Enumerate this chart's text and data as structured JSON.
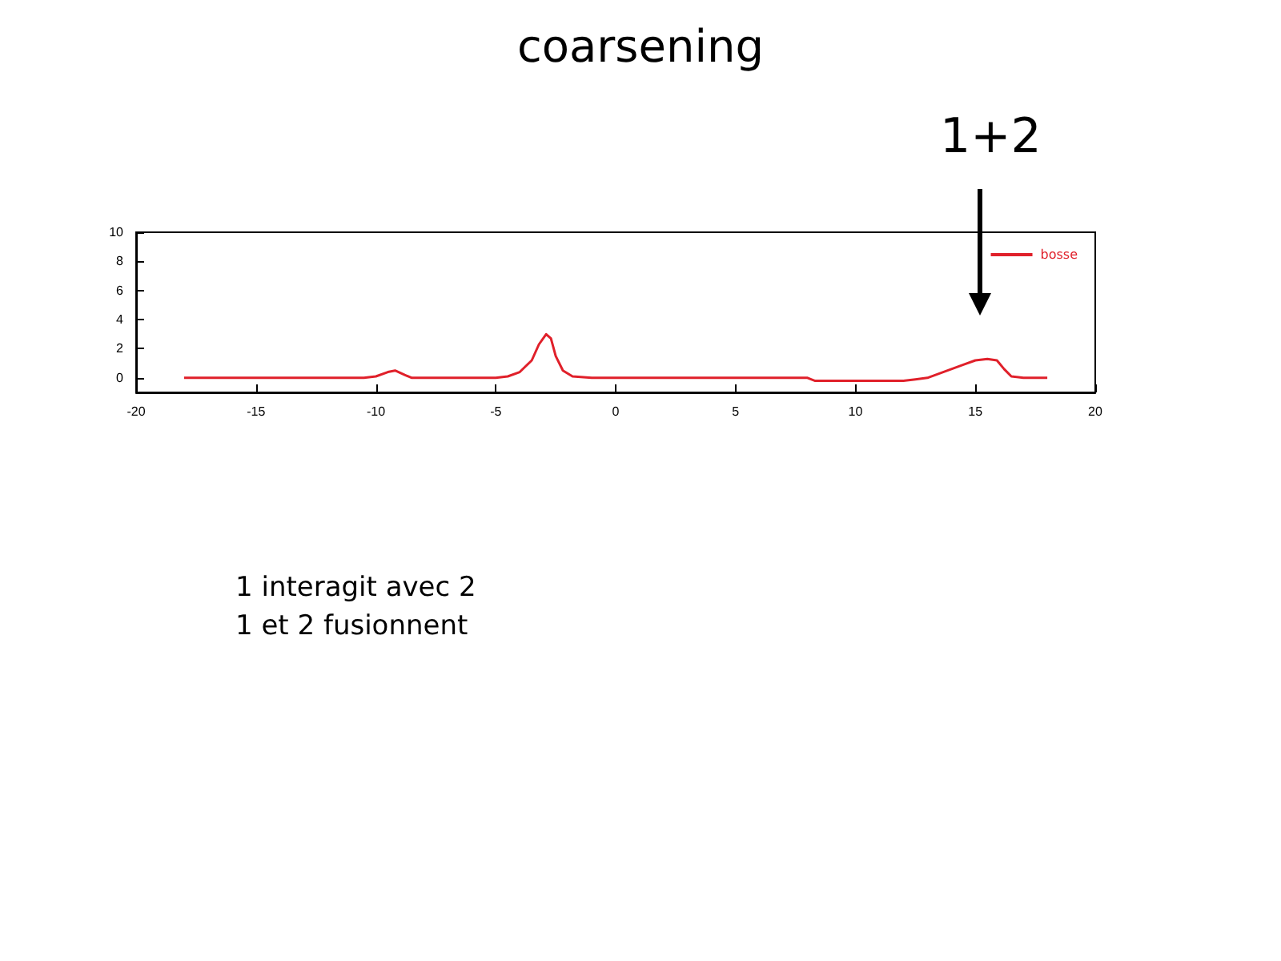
{
  "chart_data": {
    "type": "line",
    "title": "coarsening",
    "annotations": [
      "1+2",
      "1 interagit avec 2",
      "1 et 2 fusionnent"
    ],
    "series": [
      {
        "name": "bosse",
        "color": "#e0202a",
        "x": [
          -18,
          -10.5,
          -10,
          -9.5,
          -9.2,
          -8.8,
          -8.5,
          -5,
          -4.5,
          -4,
          -3.5,
          -3.2,
          -2.9,
          -2.7,
          -2.5,
          -2.2,
          -1.8,
          -1,
          8,
          8.3,
          12,
          12.5,
          13,
          13.5,
          14,
          14.5,
          15,
          15.5,
          15.9,
          16.2,
          16.5,
          17,
          18
        ],
        "values": [
          0,
          0,
          0.1,
          0.4,
          0.5,
          0.2,
          0,
          0,
          0.1,
          0.4,
          1.2,
          2.3,
          3.0,
          2.7,
          1.5,
          0.5,
          0.1,
          0,
          0,
          -0.2,
          -0.2,
          -0.1,
          0,
          0.3,
          0.6,
          0.9,
          1.2,
          1.3,
          1.2,
          0.6,
          0.1,
          0,
          0
        ]
      }
    ],
    "xlim": [
      -20,
      20
    ],
    "xticks": [
      -20,
      -15,
      -10,
      -5,
      0,
      5,
      10,
      15,
      20
    ],
    "ylim": [
      -1,
      10
    ],
    "yticks": [
      0,
      2,
      4,
      6,
      8,
      10
    ],
    "grid": false,
    "legend": "top right",
    "marker": "none",
    "line_style": "solid"
  }
}
